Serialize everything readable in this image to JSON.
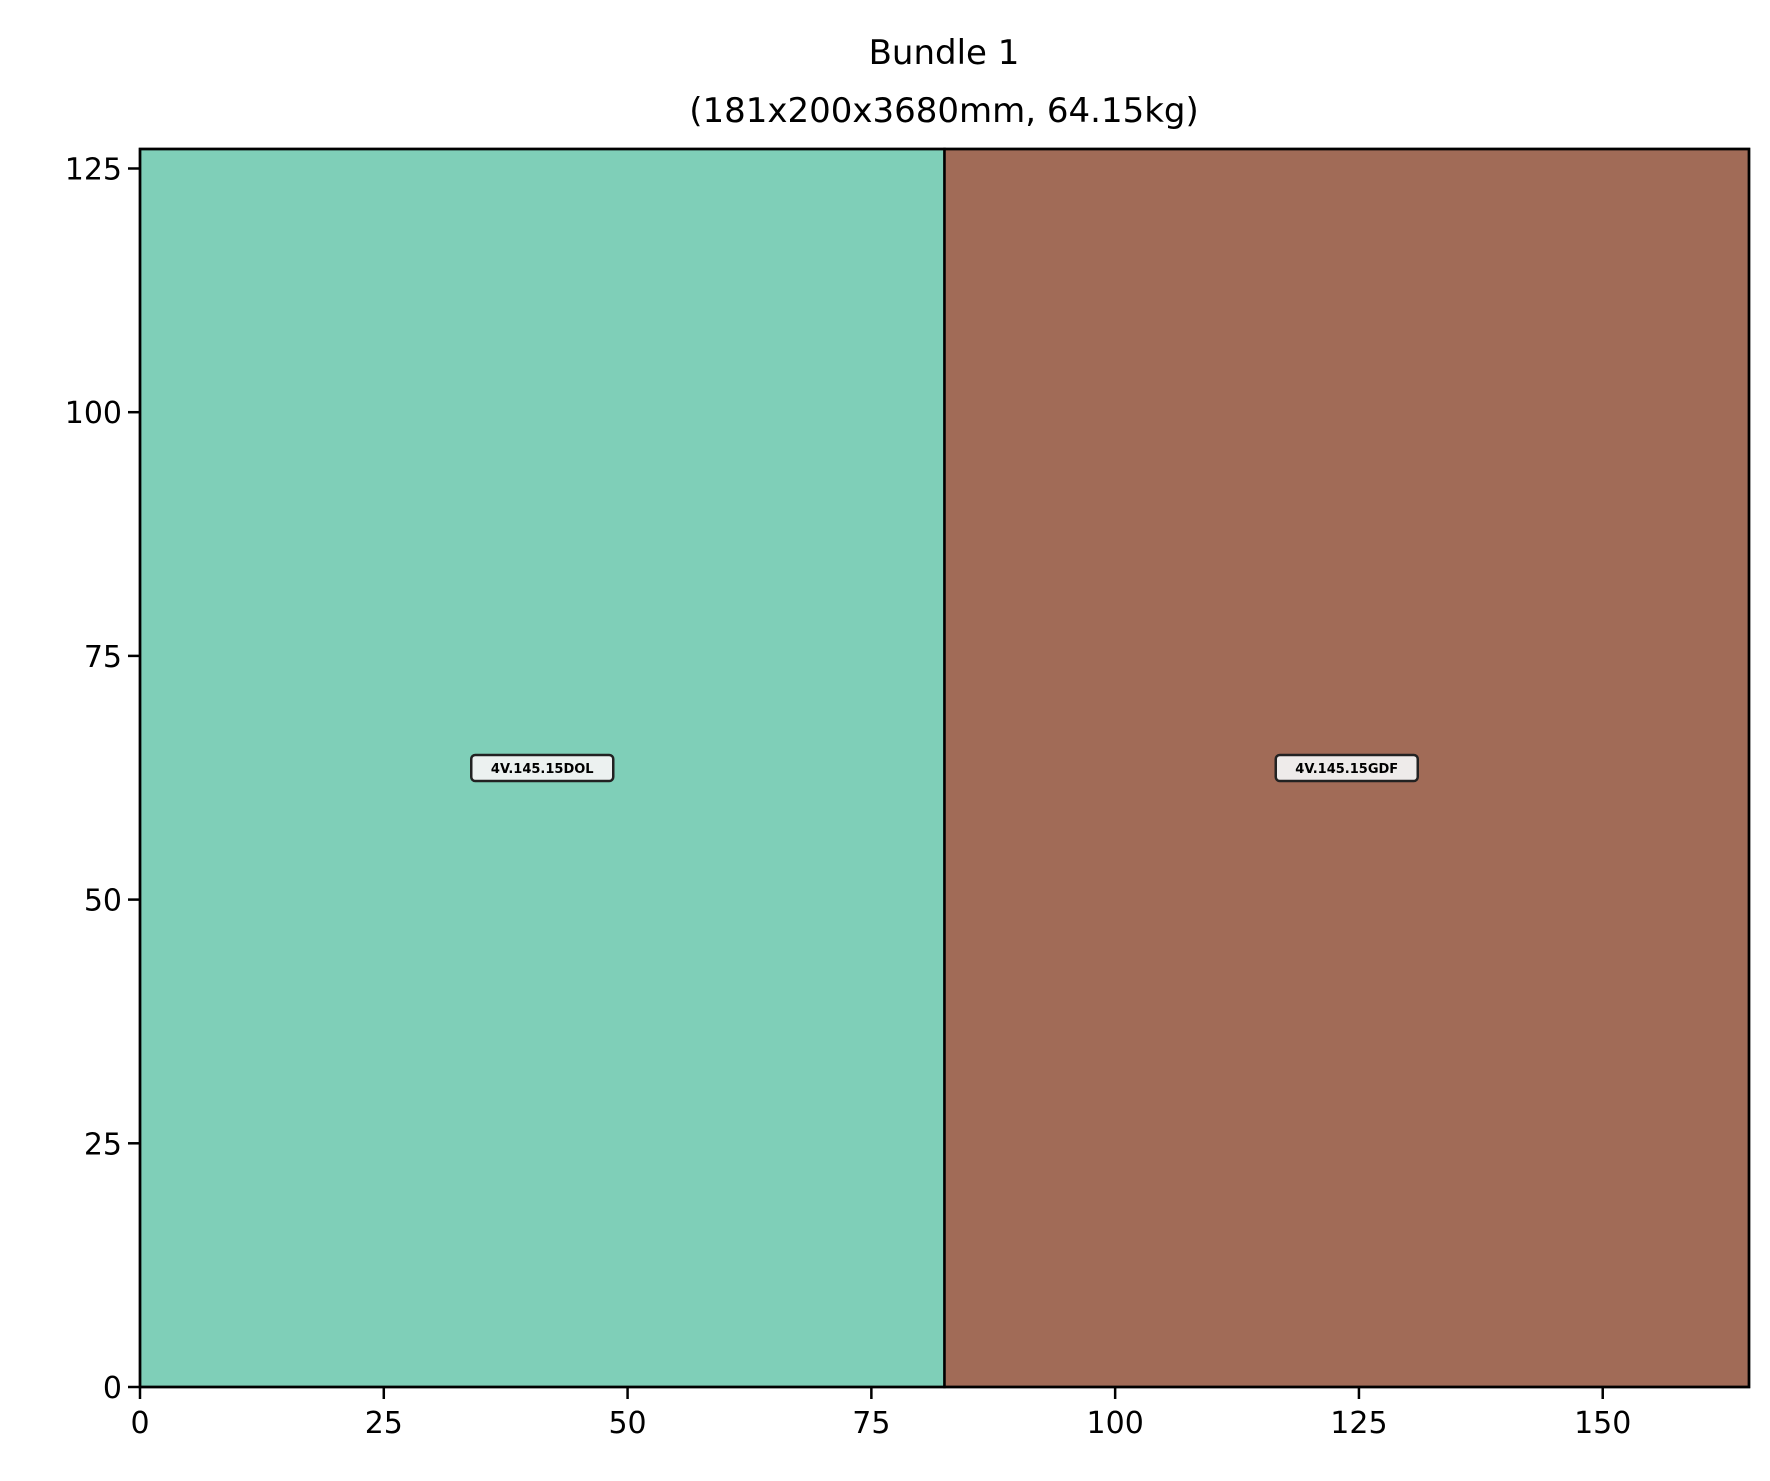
{
  "chart_data": {
    "type": "rectangles",
    "title_line1": "Bundle 1",
    "title_line2": "(181x200x3680mm, 64.15kg)",
    "xlim": [
      0,
      165
    ],
    "ylim": [
      0,
      127
    ],
    "x_ticks": [
      0,
      25,
      50,
      75,
      100,
      125,
      150
    ],
    "y_ticks": [
      0,
      25,
      50,
      75,
      100,
      125
    ],
    "grid": false,
    "items": [
      {
        "label": "4V.145.15DOL",
        "x": [
          0,
          82.5
        ],
        "y": [
          0,
          127
        ],
        "color": "#7fcfb8"
      },
      {
        "label": "4V.145.15GDF",
        "x": [
          82.5,
          165
        ],
        "y": [
          0,
          127
        ],
        "color": "#a16b57"
      }
    ]
  }
}
